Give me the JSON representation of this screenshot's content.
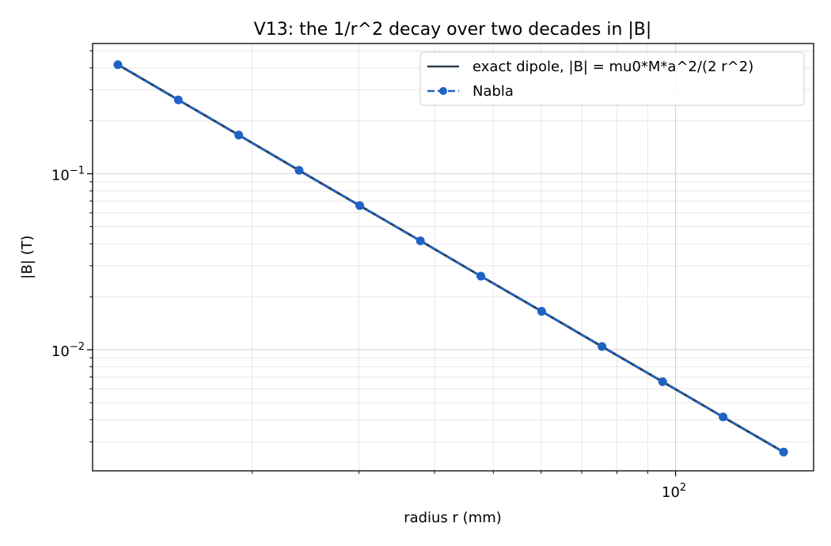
{
  "chart_data": {
    "type": "line",
    "title": "V13: the 1/r^2 decay over two decades in |B|",
    "xlabel": "radius r (mm)",
    "ylabel": "|B| (T)",
    "xscale": "log",
    "yscale": "log",
    "xlim": [
      10.9,
      169
    ],
    "ylim": [
      0.00205,
      0.55
    ],
    "x_tick_labels": [
      {
        "value": 100,
        "base": "10",
        "exp": "2"
      }
    ],
    "y_tick_labels": [
      {
        "value": 0.1,
        "base": "10",
        "exp": "−1"
      },
      {
        "value": 0.01,
        "base": "10",
        "exp": "−2"
      }
    ],
    "grid": true,
    "legend_position": "top-right",
    "series": [
      {
        "name": "exact dipole, |B| = mu0*M*a^2/(2 r^2)",
        "style": "solid",
        "color": "#2e3f4f",
        "x": [
          12,
          15.1,
          19,
          23.9,
          30.1,
          37.9,
          47.7,
          60.1,
          75.6,
          95.2,
          119.8,
          150.8
        ],
        "y": [
          0.417,
          0.263,
          0.166,
          0.1046,
          0.0659,
          0.0416,
          0.0262,
          0.01653,
          0.01043,
          0.00658,
          0.00415,
          0.00262
        ]
      },
      {
        "name": "Nabla",
        "style": "dashed-markers",
        "color": "#1f63c4",
        "x": [
          12,
          15.1,
          19,
          23.9,
          30.1,
          37.9,
          47.7,
          60.1,
          75.6,
          95.2,
          119.8,
          150.8
        ],
        "y": [
          0.417,
          0.263,
          0.166,
          0.1046,
          0.0659,
          0.0416,
          0.0262,
          0.01653,
          0.01043,
          0.00658,
          0.00415,
          0.00262
        ]
      }
    ]
  }
}
